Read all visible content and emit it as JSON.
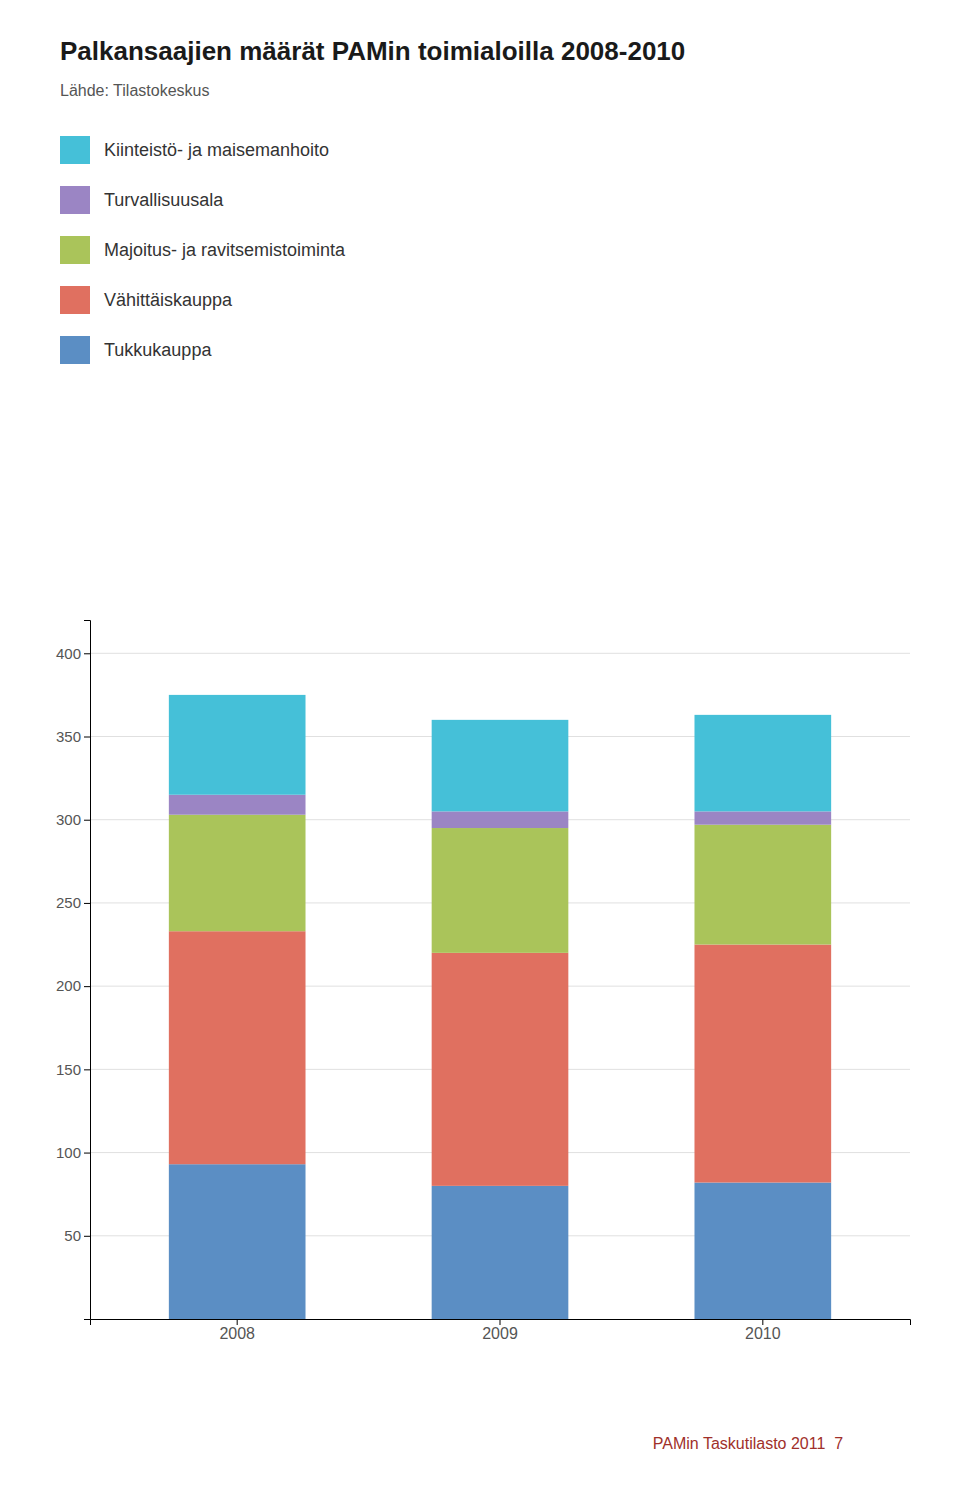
{
  "chart_data": {
    "type": "bar",
    "stacked": true,
    "title": "Palkansaajien määrät PAMin toimialoilla 2008-2010",
    "subtitle": "Lähde: Tilastokeskus",
    "categories": [
      "2008",
      "2009",
      "2010"
    ],
    "series": [
      {
        "name": "Tukkukauppa",
        "color": "#5b8ec4",
        "values": [
          93,
          80,
          82
        ]
      },
      {
        "name": "Vähittäiskauppa",
        "color": "#e07060",
        "values": [
          140,
          140,
          143
        ]
      },
      {
        "name": "Majoitus- ja ravitsemistoiminta",
        "color": "#aac45a",
        "values": [
          70,
          75,
          72
        ]
      },
      {
        "name": "Turvallisuusala",
        "color": "#9b85c4",
        "values": [
          12,
          10,
          8
        ]
      },
      {
        "name": "Kiinteistö- ja maisemanhoito",
        "color": "#45c0d8",
        "values": [
          60,
          55,
          58
        ]
      }
    ],
    "ylim": [
      0,
      420
    ],
    "yticks": [
      50,
      100,
      150,
      200,
      250,
      300,
      350,
      400
    ],
    "grid": true,
    "legend": "top",
    "annotations": [
      {
        "text": "PAMin Taskutilasto 2011  7",
        "color": "#a0302a"
      }
    ]
  }
}
